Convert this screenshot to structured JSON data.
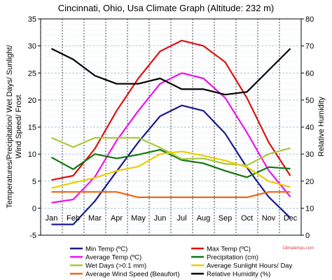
{
  "chart_data": {
    "type": "line",
    "title": "Cincinnati, Ohio, Usa Climate Graph (Altitude: 232 m)",
    "watermark": "Climatemps.com",
    "categories": [
      "Jan",
      "Feb",
      "Mar",
      "Apr",
      "May",
      "Jun",
      "Jul",
      "Aug",
      "Sep",
      "Oct",
      "Nov",
      "Dec"
    ],
    "y_left": {
      "label_lines": [
        "Temperatures/Precipitation/ Wet Days/ Sunlight/",
        "Wind Speed/ Frost"
      ],
      "min": -5,
      "max": 35,
      "ticks": [
        "-5",
        "0",
        "5",
        "10",
        "15",
        "20",
        "25",
        "30",
        "35"
      ]
    },
    "y_right": {
      "label": "Relative Humidity",
      "min": 0,
      "max": 80,
      "ticks": [
        "0",
        "10",
        "20",
        "30",
        "40",
        "50",
        "60",
        "70",
        "80"
      ]
    },
    "grid": true,
    "legend_position": "bottom",
    "series": [
      {
        "name": "Min Temp (ºC)",
        "color": "#1a1a8c",
        "axis": "left",
        "values": [
          -3,
          -3,
          1.3,
          6.8,
          12.2,
          17,
          19,
          18,
          13.8,
          7.5,
          2.1,
          -1.8
        ]
      },
      {
        "name": "Max Temp (ºC)",
        "color": "#dd1111",
        "axis": "left",
        "values": [
          5.2,
          6,
          11,
          18,
          24,
          29,
          31,
          30,
          27,
          20.4,
          12.2,
          6
        ]
      },
      {
        "name": "Average Temp (ºC)",
        "color": "#ee11ee",
        "axis": "left",
        "values": [
          1,
          1.6,
          5.8,
          12.5,
          18,
          23,
          25,
          24,
          20.4,
          14,
          7,
          2.1
        ]
      },
      {
        "name": "Precipitation (cm)",
        "color": "#117711",
        "axis": "left",
        "values": [
          9.4,
          7.2,
          10,
          9.2,
          9.9,
          10.8,
          8.9,
          8.3,
          6.9,
          5.7,
          7.6,
          7.3
        ]
      },
      {
        "name": "Wet Days (>0.1 mm)",
        "color": "#a8c83a",
        "axis": "left",
        "values": [
          13,
          11.3,
          13,
          13,
          13,
          11.2,
          9.1,
          9.2,
          8.2,
          7.9,
          10,
          11.1
        ]
      },
      {
        "name": "Average Sunlight Hours/ Day",
        "color": "#eecc00",
        "axis": "left",
        "values": [
          3.7,
          4.7,
          5.6,
          6.9,
          7.7,
          10,
          10.5,
          9.7,
          8.8,
          7.6,
          5,
          3.9
        ]
      },
      {
        "name": "Average Wind Speed (Beaufort)",
        "color": "#ee6611",
        "axis": "left",
        "values": [
          3,
          3,
          3,
          3,
          2,
          2,
          2,
          2,
          2,
          2,
          3,
          3
        ]
      },
      {
        "name": "Relative Humidity (%)",
        "color": "#000000",
        "axis": "right",
        "values": [
          69,
          65,
          59,
          56,
          56,
          58,
          54,
          54,
          52,
          53,
          61,
          69
        ]
      }
    ]
  }
}
